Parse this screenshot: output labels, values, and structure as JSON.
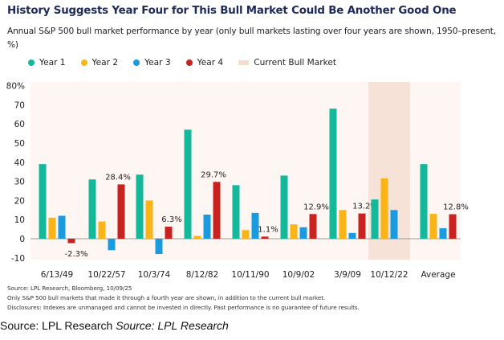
{
  "chart_data": {
    "type": "bar",
    "title": "History Suggests Year Four for This Bull Market Could Be Another Good One",
    "subtitle": "Annual S&P 500 bull market performance by year (only bull markets lasting over four years are shown, 1950–present, %)",
    "xlabel": "",
    "ylabel": "",
    "ylim": [
      -10,
      80
    ],
    "yticks": [
      80,
      70,
      60,
      50,
      40,
      30,
      20,
      10,
      0,
      -10
    ],
    "ytick_labels": [
      "80%",
      "70",
      "60",
      "50",
      "40",
      "30",
      "20",
      "10",
      "0",
      "-10"
    ],
    "grid": false,
    "legend_position": "top-left",
    "categories": [
      "6/13/49",
      "10/22/57",
      "10/3/74",
      "8/12/82",
      "10/11/90",
      "10/9/02",
      "3/9/09",
      "10/12/22",
      "Average"
    ],
    "highlight_category": "10/12/22",
    "series": [
      {
        "name": "Year 1",
        "color": "#14b89a",
        "values": [
          39,
          31,
          33.5,
          57,
          28,
          33,
          68,
          20.5,
          39
        ]
      },
      {
        "name": "Year 2",
        "color": "#fbb417",
        "values": [
          11,
          9,
          20,
          1.5,
          4.5,
          7.5,
          15,
          31.5,
          13
        ]
      },
      {
        "name": "Year 3",
        "color": "#1a9be0",
        "values": [
          12,
          -6,
          -8,
          12.6,
          13.5,
          6,
          3,
          15,
          5.5
        ]
      },
      {
        "name": "Year 4",
        "color": "#c8231f",
        "values": [
          -2.3,
          28.4,
          6.3,
          29.7,
          1.1,
          12.9,
          13.2,
          null,
          12.8
        ]
      }
    ],
    "data_labels": [
      "-2.3%",
      "28.4%",
      "6.3%",
      "29.7%",
      "1.1%",
      "12.9%",
      "13.2%",
      "",
      "12.8%"
    ],
    "legend": [
      {
        "label": "Year 1",
        "color": "#14b89a",
        "shape": "dot"
      },
      {
        "label": "Year 2",
        "color": "#fbb417",
        "shape": "dot"
      },
      {
        "label": "Year 3",
        "color": "#1a9be0",
        "shape": "dot"
      },
      {
        "label": "Year 4",
        "color": "#c8231f",
        "shape": "dot"
      },
      {
        "label": "Current Bull Market",
        "color": "#f5ddd0",
        "shape": "rect"
      }
    ],
    "plot_background": "#fdf6f2",
    "highlight_color": "#f7e2d7"
  },
  "footnotes": {
    "source": "Source: LPL Research, Bloomberg, 10/09/25",
    "note": "Only S&P 500 bull markets that made it through a fourth year are shown, in addition to the current bull market.",
    "disclosure": "Disclosures: Indexes are unmanaged and cannot be invested in directly. Past performance is no guarantee of future results."
  },
  "caption": {
    "plain": "Source: LPL Research ",
    "italic": "Source: LPL Research"
  }
}
